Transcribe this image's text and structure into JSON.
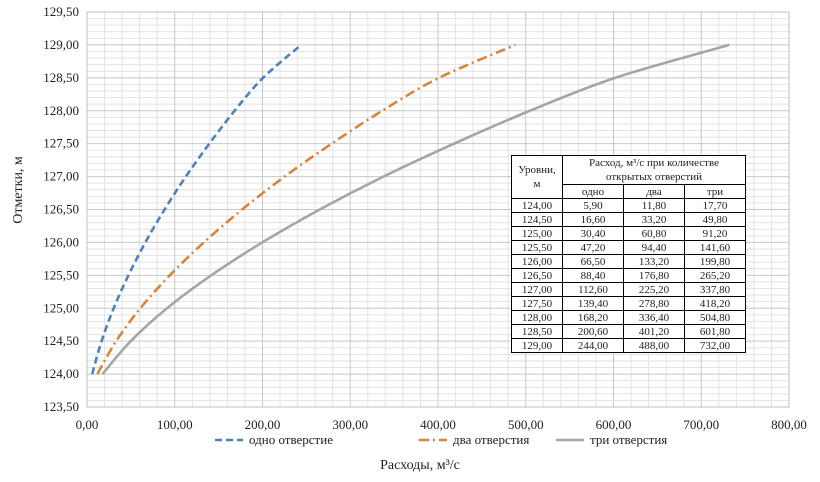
{
  "chart_data": {
    "type": "line",
    "title": "",
    "xlabel": "Расходы, м³/с",
    "ylabel": "Отметки, м",
    "xlim": [
      0,
      800
    ],
    "ylim": [
      123.5,
      129.5
    ],
    "x_ticks": [
      "0,00",
      "100,00",
      "200,00",
      "300,00",
      "400,00",
      "500,00",
      "600,00",
      "700,00",
      "800,00"
    ],
    "y_ticks": [
      "123,50",
      "124,00",
      "124,50",
      "125,00",
      "125,50",
      "126,00",
      "126,50",
      "127,00",
      "127,50",
      "128,00",
      "128,50",
      "129,00",
      "129,50"
    ],
    "grid": true,
    "legend_position": "bottom",
    "series": [
      {
        "name": "одно отверстие",
        "color": "#4f81bd",
        "style": "dashed",
        "x": [
          5.9,
          16.6,
          30.4,
          47.2,
          66.5,
          88.4,
          112.6,
          139.4,
          168.2,
          200.6,
          244.0
        ],
        "y": [
          124.0,
          124.5,
          125.0,
          125.5,
          126.0,
          126.5,
          127.0,
          127.5,
          128.0,
          128.5,
          129.0
        ]
      },
      {
        "name": "два отверстия",
        "color": "#d9843b",
        "style": "dashdot",
        "x": [
          11.8,
          33.2,
          60.8,
          94.4,
          133.2,
          176.8,
          225.2,
          278.8,
          336.4,
          401.2,
          488.0
        ],
        "y": [
          124.0,
          124.5,
          125.0,
          125.5,
          126.0,
          126.5,
          127.0,
          127.5,
          128.0,
          128.5,
          129.0
        ]
      },
      {
        "name": "три отверстия",
        "color": "#a5a5a5",
        "style": "solid",
        "x": [
          17.7,
          49.8,
          91.2,
          141.6,
          199.8,
          265.2,
          337.8,
          418.2,
          504.8,
          601.8,
          732.0
        ],
        "y": [
          124.0,
          124.5,
          125.0,
          125.5,
          126.0,
          126.5,
          127.0,
          127.5,
          128.0,
          128.5,
          129.0
        ]
      }
    ],
    "table": {
      "header_levels": "Уровни, м",
      "header_q_line1": "Расход, м³/с  при количестве",
      "header_q_line2": "открытых отверстий",
      "sub_headers": [
        "одно",
        "два",
        "три"
      ],
      "rows": [
        [
          "124,00",
          "5,90",
          "11,80",
          "17,70"
        ],
        [
          "124,50",
          "16,60",
          "33,20",
          "49,80"
        ],
        [
          "125,00",
          "30,40",
          "60,80",
          "91,20"
        ],
        [
          "125,50",
          "47,20",
          "94,40",
          "141,60"
        ],
        [
          "126,00",
          "66,50",
          "133,20",
          "199,80"
        ],
        [
          "126,50",
          "88,40",
          "176,80",
          "265,20"
        ],
        [
          "127,00",
          "112,60",
          "225,20",
          "337,80"
        ],
        [
          "127,50",
          "139,40",
          "278,80",
          "418,20"
        ],
        [
          "128,00",
          "168,20",
          "336,40",
          "504,80"
        ],
        [
          "128,50",
          "200,60",
          "401,20",
          "601,80"
        ],
        [
          "129,00",
          "244,00",
          "488,00",
          "732,00"
        ]
      ]
    }
  }
}
